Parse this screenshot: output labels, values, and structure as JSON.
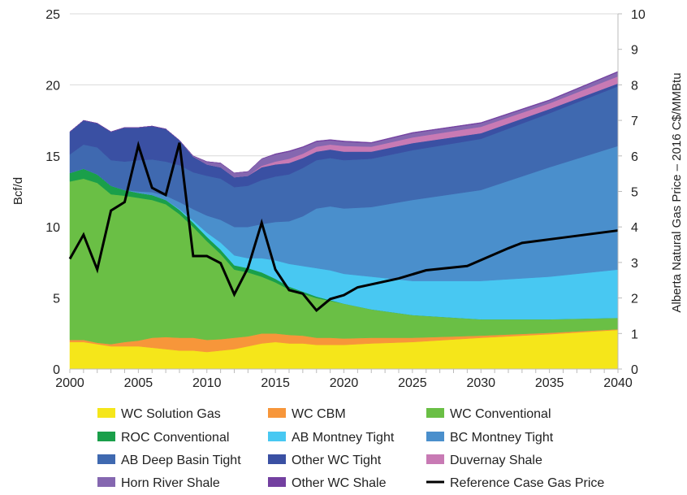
{
  "chart_data": {
    "type": "area",
    "stacked": true,
    "ylabel": "Bcf/d",
    "y2label": "Alberta Natural Gas Price – 2016 C$/MMBtu",
    "xlim": [
      2000,
      2040
    ],
    "ylim": [
      0,
      25
    ],
    "y2lim": [
      0,
      10
    ],
    "xticks": [
      2000,
      2005,
      2010,
      2015,
      2020,
      2025,
      2030,
      2035,
      2040
    ],
    "yticks": [
      0,
      5,
      10,
      15,
      20,
      25
    ],
    "y2ticks": [
      0,
      1,
      2,
      3,
      4,
      5,
      6,
      7,
      8,
      9,
      10
    ],
    "grid": true,
    "legend_position": "bottom",
    "x": [
      2000,
      2001,
      2002,
      2003,
      2004,
      2005,
      2006,
      2007,
      2008,
      2009,
      2010,
      2011,
      2012,
      2013,
      2014,
      2015,
      2016,
      2017,
      2018,
      2019,
      2020,
      2022,
      2025,
      2030,
      2035,
      2040
    ],
    "series": [
      {
        "name": "WC Solution Gas",
        "color": "#f5e61a",
        "values": [
          1.9,
          1.9,
          1.75,
          1.6,
          1.6,
          1.6,
          1.5,
          1.4,
          1.3,
          1.3,
          1.2,
          1.3,
          1.4,
          1.6,
          1.8,
          1.9,
          1.8,
          1.8,
          1.7,
          1.7,
          1.7,
          1.8,
          1.9,
          2.2,
          2.45,
          2.75
        ]
      },
      {
        "name": "WC CBM",
        "color": "#f7963a",
        "values": [
          0.15,
          0.15,
          0.1,
          0.15,
          0.3,
          0.4,
          0.7,
          0.85,
          0.9,
          0.9,
          0.85,
          0.8,
          0.8,
          0.7,
          0.7,
          0.6,
          0.6,
          0.55,
          0.5,
          0.5,
          0.45,
          0.4,
          0.3,
          0.15,
          0.1,
          0.05
        ]
      },
      {
        "name": "WC Conventional",
        "color": "#6abf45",
        "values": [
          11.15,
          11.35,
          11.25,
          10.55,
          10.3,
          10.05,
          9.7,
          9.35,
          8.7,
          7.8,
          6.95,
          6.0,
          4.8,
          4.5,
          4.0,
          3.6,
          3.2,
          2.95,
          2.8,
          2.6,
          2.45,
          2.0,
          1.6,
          1.15,
          0.95,
          0.8
        ]
      },
      {
        "name": "ROC Conventional",
        "color": "#1a9f4a",
        "values": [
          0.6,
          0.7,
          0.6,
          0.6,
          0.4,
          0.35,
          0.35,
          0.3,
          0.3,
          0.3,
          0.3,
          0.3,
          0.3,
          0.3,
          0.3,
          0.25,
          0.2,
          0.15,
          0.1,
          0.05,
          0,
          0,
          0,
          0,
          0,
          0
        ]
      },
      {
        "name": "AB Montney Tight",
        "color": "#48c8f2",
        "values": [
          0,
          0,
          0,
          0,
          0,
          0,
          0,
          0,
          0.05,
          0.15,
          0.3,
          0.5,
          0.7,
          0.7,
          1.0,
          1.3,
          1.6,
          1.8,
          2.0,
          2.1,
          2.1,
          2.3,
          2.4,
          2.7,
          3.0,
          3.4
        ]
      },
      {
        "name": "BC Montney Tight",
        "color": "#4a8fcc",
        "values": [
          0,
          0,
          0,
          0,
          0,
          0.1,
          0.2,
          0.3,
          0.5,
          0.8,
          1.2,
          1.6,
          2.0,
          2.2,
          2.4,
          2.7,
          3.0,
          3.5,
          4.2,
          4.5,
          4.6,
          4.9,
          5.7,
          6.4,
          7.7,
          8.7
        ]
      },
      {
        "name": "AB Deep Basin Tight",
        "color": "#3f69b0",
        "values": [
          1.3,
          1.7,
          1.9,
          1.8,
          2.0,
          2.2,
          2.3,
          2.4,
          2.6,
          2.6,
          2.8,
          2.9,
          2.8,
          2.9,
          3.1,
          3.2,
          3.3,
          3.4,
          3.4,
          3.4,
          3.4,
          3.4,
          3.5,
          3.6,
          3.8,
          4.2
        ]
      },
      {
        "name": "Other WC Tight",
        "color": "#3a50a3",
        "values": [
          1.6,
          1.7,
          1.7,
          2.0,
          2.4,
          2.3,
          2.35,
          2.3,
          1.75,
          1.1,
          0.8,
          0.8,
          0.7,
          0.7,
          0.9,
          0.85,
          0.8,
          0.7,
          0.6,
          0.6,
          0.6,
          0.5,
          0.5,
          0.4,
          0.3,
          0.2
        ]
      },
      {
        "name": "Duvernay Shale",
        "color": "#c87ab4",
        "values": [
          0,
          0,
          0,
          0,
          0,
          0,
          0,
          0,
          0,
          0,
          0,
          0,
          0,
          0,
          0.1,
          0.2,
          0.3,
          0.3,
          0.35,
          0.35,
          0.4,
          0.35,
          0.4,
          0.45,
          0.4,
          0.5
        ]
      },
      {
        "name": "Horn River Shale",
        "color": "#8567b0",
        "values": [
          0,
          0,
          0,
          0,
          0,
          0,
          0,
          0,
          0,
          0.05,
          0.2,
          0.3,
          0.3,
          0.3,
          0.5,
          0.5,
          0.5,
          0.45,
          0.35,
          0.3,
          0.3,
          0.25,
          0.3,
          0.25,
          0.2,
          0.3
        ]
      },
      {
        "name": "Other WC Shale",
        "color": "#7340a0",
        "values": [
          0,
          0,
          0,
          0,
          0,
          0,
          0,
          0,
          0,
          0,
          0,
          0,
          0,
          0,
          0,
          0.05,
          0.05,
          0.05,
          0.05,
          0.05,
          0.05,
          0.05,
          0.05,
          0.05,
          0.05,
          0.05
        ]
      }
    ],
    "line_series": {
      "name": "Reference Case Gas Price",
      "axis": "right",
      "color": "#000000",
      "x": [
        2000,
        2001,
        2002,
        2003,
        2004,
        2005,
        2006,
        2007,
        2008,
        2009,
        2010,
        2011,
        2012,
        2013,
        2014,
        2015,
        2016,
        2017,
        2018,
        2019,
        2020,
        2021,
        2024,
        2026,
        2029,
        2032,
        2033,
        2036,
        2040
      ],
      "values": [
        3.1,
        3.78,
        2.8,
        4.46,
        4.7,
        6.3,
        5.1,
        4.9,
        6.37,
        3.18,
        3.18,
        2.98,
        2.1,
        2.85,
        4.12,
        2.8,
        2.22,
        2.12,
        1.65,
        1.97,
        2.08,
        2.3,
        2.55,
        2.78,
        2.9,
        3.4,
        3.55,
        3.7,
        3.9
      ]
    }
  }
}
